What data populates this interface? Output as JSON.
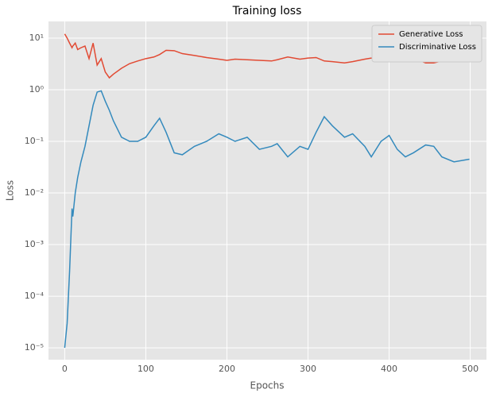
{
  "chart_data": {
    "type": "line",
    "title": "Training loss",
    "x_label": "Epochs",
    "y_label": "Loss",
    "log_y": true,
    "grid": true,
    "legend": "upper right",
    "x": [
      0,
      3,
      6,
      9,
      10,
      13,
      16,
      20,
      25,
      30,
      35,
      40,
      45,
      50,
      55,
      60,
      70,
      80,
      90,
      100,
      110,
      117,
      125,
      135,
      145,
      160,
      175,
      190,
      200,
      210,
      225,
      240,
      255,
      262,
      275,
      290,
      300,
      310,
      320,
      330,
      345,
      355,
      370,
      378,
      390,
      400,
      410,
      420,
      430,
      445,
      455,
      465,
      480,
      499
    ],
    "series": [
      {
        "name": "Generative Loss",
        "color": "#E24A33",
        "values": [
          12,
          10,
          8,
          6.5,
          7,
          8,
          6,
          6.5,
          7,
          4,
          8,
          3,
          4,
          2.2,
          1.7,
          2,
          2.6,
          3.2,
          3.6,
          4,
          4.3,
          4.8,
          5.8,
          5.7,
          5,
          4.6,
          4.2,
          3.9,
          3.7,
          3.9,
          3.8,
          3.7,
          3.6,
          3.8,
          4.3,
          3.9,
          4.1,
          4.2,
          3.6,
          3.5,
          3.3,
          3.5,
          3.9,
          4.1,
          4,
          3.8,
          4,
          4.4,
          4.1,
          3.3,
          3.3,
          3.6,
          4,
          4.2
        ]
      },
      {
        "name": "Discriminative Loss",
        "color": "#348ABD",
        "values": [
          1e-05,
          3e-05,
          0.0003,
          0.005,
          0.0035,
          0.01,
          0.02,
          0.04,
          0.08,
          0.2,
          0.5,
          0.9,
          0.95,
          0.6,
          0.4,
          0.25,
          0.12,
          0.1,
          0.1,
          0.12,
          0.2,
          0.28,
          0.15,
          0.06,
          0.055,
          0.08,
          0.1,
          0.14,
          0.12,
          0.1,
          0.12,
          0.07,
          0.08,
          0.09,
          0.05,
          0.08,
          0.07,
          0.15,
          0.3,
          0.2,
          0.12,
          0.14,
          0.08,
          0.05,
          0.1,
          0.13,
          0.07,
          0.05,
          0.06,
          0.085,
          0.08,
          0.05,
          0.04,
          0.045
        ]
      }
    ],
    "xlim": [
      -20,
      520
    ],
    "xticks": [
      0,
      100,
      200,
      300,
      400,
      500
    ],
    "ylim": [
      5.9e-06,
      21
    ],
    "yticks": [
      {
        "value": 1e-05,
        "label": "10⁻⁵"
      },
      {
        "value": 0.0001,
        "label": "10⁻⁴"
      },
      {
        "value": 0.001,
        "label": "10⁻³"
      },
      {
        "value": 0.01,
        "label": "10⁻²"
      },
      {
        "value": 0.1,
        "label": "10⁻¹"
      },
      {
        "value": 1,
        "label": "10⁰"
      },
      {
        "value": 10,
        "label": "10¹"
      }
    ]
  }
}
